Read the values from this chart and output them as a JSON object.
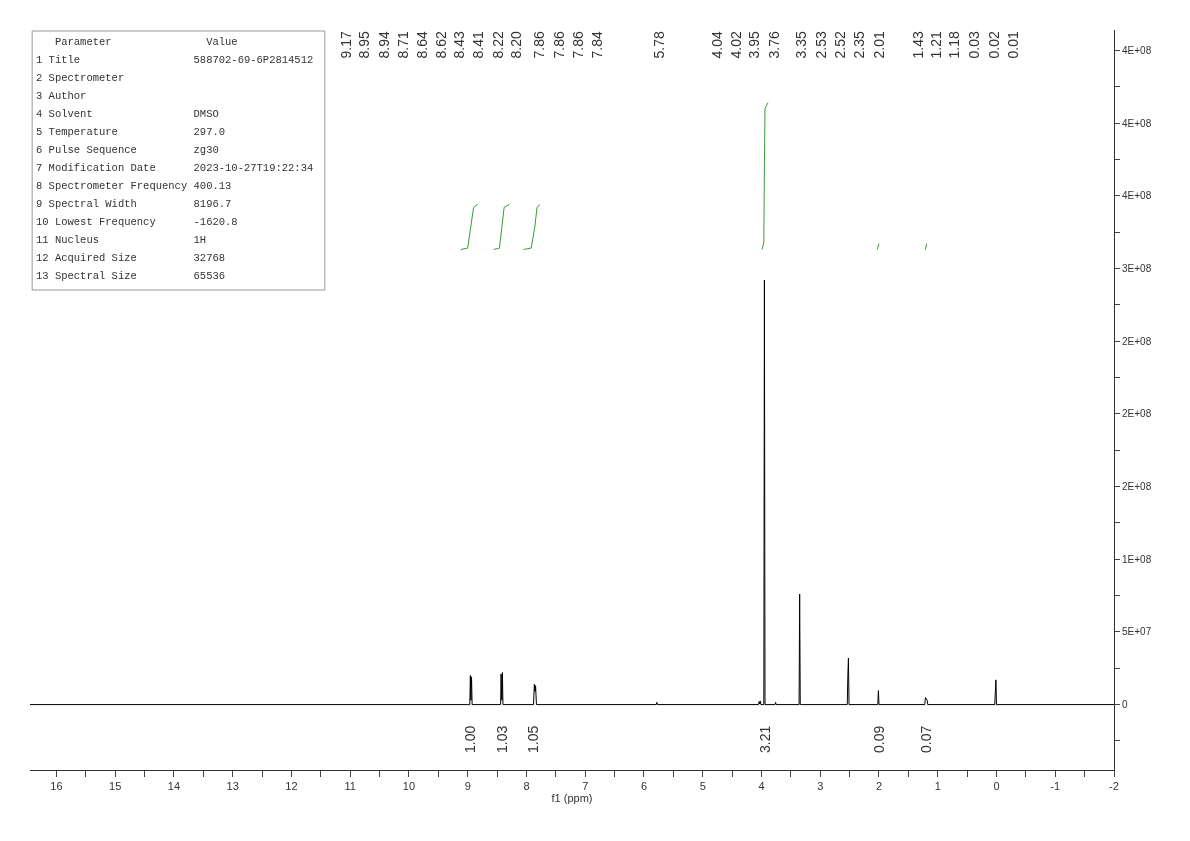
{
  "chart_data": {
    "type": "line",
    "xlabel": "f1 (ppm)",
    "xlim": [
      16.45,
      -2
    ],
    "xticks": [
      16,
      {
        "value": 15.5,
        "label": null
      },
      15,
      {
        "value": 14.5,
        "label": null
      },
      14,
      {
        "value": 13.5,
        "label": null
      },
      13,
      {
        "value": 12.5,
        "label": null
      },
      12,
      {
        "value": 11.5,
        "label": null
      },
      11,
      {
        "value": 10.5,
        "label": null
      },
      10,
      {
        "value": 9.5,
        "label": null
      },
      9,
      {
        "value": 8.5,
        "label": null
      },
      8,
      {
        "value": 7.5,
        "label": null
      },
      7,
      {
        "value": 6.5,
        "label": null
      },
      6,
      {
        "value": 5.5,
        "label": null
      },
      5,
      {
        "value": 4.5,
        "label": null
      },
      4,
      {
        "value": 3.5,
        "label": null
      },
      3,
      {
        "value": 2.5,
        "label": null
      },
      2,
      {
        "value": 1.5,
        "label": null
      },
      1,
      {
        "value": 0.5,
        "label": null
      },
      0,
      {
        "value": -0.5,
        "label": null
      },
      -1,
      {
        "value": -1.5,
        "label": null
      },
      -2
    ],
    "ylim": [
      -45000000,
      464000000
    ],
    "yticks": [
      {
        "value": -25000000,
        "label": null
      },
      0,
      {
        "value": 25000000,
        "label": null
      },
      {
        "value": 50000000,
        "label": "5E+07"
      },
      {
        "value": 75000000,
        "label": null
      },
      {
        "value": 100000000,
        "label": "1E+08"
      },
      {
        "value": 125000000,
        "label": null
      },
      {
        "value": 150000000,
        "label": "2E+08"
      },
      {
        "value": 175000000,
        "label": null
      },
      {
        "value": 200000000,
        "label": "2E+08"
      },
      {
        "value": 225000000,
        "label": null
      },
      {
        "value": 250000000,
        "label": "2E+08"
      },
      {
        "value": 275000000,
        "label": null
      },
      {
        "value": 300000000,
        "label": "3E+08"
      },
      {
        "value": 325000000,
        "label": null
      },
      {
        "value": 350000000,
        "label": "4E+08"
      },
      {
        "value": 375000000,
        "label": null
      },
      {
        "value": 400000000,
        "label": "4E+08"
      },
      {
        "value": 425000000,
        "label": null
      },
      {
        "value": 450000000,
        "label": "4E+08"
      }
    ],
    "series": [
      {
        "color": "#000000",
        "x": [
          16.45,
          9.0,
          8.965,
          8.955,
          8.945,
          8.935,
          8.925,
          8.44,
          8.432,
          8.42,
          8.41,
          8.4,
          7.88,
          7.866,
          7.855,
          7.845,
          7.83,
          5.79,
          5.78,
          5.77,
          4.05,
          4.04,
          4.03,
          4.02,
          4.01,
          3.96,
          3.95,
          3.94,
          3.77,
          3.76,
          3.75,
          3.36,
          3.35,
          3.34,
          2.54,
          2.53,
          2.52,
          2.51,
          2.02,
          2.01,
          2.0,
          1.22,
          1.21,
          1.18,
          1.17,
          0.03,
          0.01,
          0.0,
          -2
        ],
        "values": [
          0,
          0,
          0,
          20000000,
          3000000,
          19000000,
          0,
          0,
          21000000,
          3000000,
          22000000,
          0,
          0,
          14000000,
          9000000,
          13000000,
          0,
          0,
          1500000,
          0,
          0,
          2000000,
          500000,
          2500000,
          0,
          0,
          292000000,
          0,
          0,
          1500000,
          0,
          0,
          76000000,
          0,
          0,
          20000000,
          32000000,
          0,
          0,
          9600000,
          0,
          0,
          4800000,
          3000000,
          0,
          0,
          17000000,
          0,
          0
        ]
      },
      {
        "color": "#3a9a3a",
        "x": [
          9.12,
          9.0,
          8.95,
          8.9,
          8.83,
          null,
          8.56,
          8.46,
          8.42,
          8.38,
          8.29,
          null,
          8.05,
          7.92,
          7.86,
          7.82,
          7.77,
          null,
          3.99,
          3.96,
          3.95,
          3.94,
          3.89,
          null,
          2.03,
          2.0,
          null,
          1.21,
          1.19
        ],
        "values": [
          313000000,
          314000000,
          328000000,
          342000000,
          344000000,
          null,
          313000000,
          314000000,
          328000000,
          342000000,
          344000000,
          null,
          313000000,
          314000000,
          328000000,
          342000000,
          344000000,
          null,
          313000000,
          318000000,
          370000000,
          410000000,
          414000000,
          null,
          313000000,
          317000000,
          null,
          313000000,
          317000000
        ]
      }
    ],
    "annotations": [
      "   Parameter               Value",
      "1 Title                  588702-69-6P2814512",
      "2 Spectrometer",
      "3 Author",
      "4 Solvent                DMSO",
      "5 Temperature            297.0",
      "6 Pulse Sequence         zg30",
      "7 Modification Date      2023-10-27T19:22:34",
      "8 Spectrometer Frequency 400.13",
      "9 Spectral Width         8196.7",
      "10 Lowest Frequency      -1620.8",
      "11 Nucleus               1H",
      "12 Acquired Size         32768",
      "13 Spectral Size         65536",
      "9.17",
      "8.95",
      "8.94",
      "8.71",
      "8.64",
      "8.62",
      "8.43",
      "8.41",
      "8.22",
      "8.20",
      "7.86",
      "7.86",
      "7.86",
      "7.84",
      "5.78",
      "4.04",
      "4.02",
      "3.95",
      "3.76",
      "3.35",
      "2.53",
      "2.52",
      "2.35",
      "2.01",
      "1.43",
      "1.21",
      "1.18",
      "0.03",
      "0.02",
      "0.01",
      "1.00",
      "1.03",
      "1.05",
      "3.21",
      "0.09",
      "0.07"
    ]
  }
}
